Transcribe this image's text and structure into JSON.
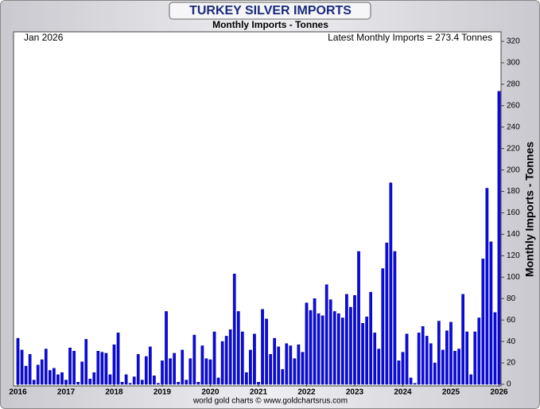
{
  "chart_data": {
    "type": "bar",
    "title": "TURKEY SILVER IMPORTS",
    "subtitle": "Monthly Imports - Tonnes",
    "y_axis_label": "Monthly Imports - Tonnes",
    "annotation_left": "Jan 2026",
    "annotation_right": "Latest Monthly Imports = 273.4 Tonnes",
    "footer": "world gold charts © www.goldchartsrus.com",
    "color": "#0a0ae6",
    "ylim": [
      0,
      320
    ],
    "yticks": [
      0,
      20,
      40,
      60,
      80,
      100,
      120,
      140,
      160,
      180,
      200,
      220,
      240,
      260,
      280,
      300,
      320
    ],
    "categories": [
      "2016",
      null,
      null,
      null,
      null,
      null,
      null,
      null,
      null,
      null,
      null,
      null,
      "2017",
      null,
      null,
      null,
      null,
      null,
      null,
      null,
      null,
      null,
      null,
      null,
      "2018",
      null,
      null,
      null,
      null,
      null,
      null,
      null,
      null,
      null,
      null,
      null,
      "2019",
      null,
      null,
      null,
      null,
      null,
      null,
      null,
      null,
      null,
      null,
      null,
      "2020",
      null,
      null,
      null,
      null,
      null,
      null,
      null,
      null,
      null,
      null,
      null,
      "2021",
      null,
      null,
      null,
      null,
      null,
      null,
      null,
      null,
      null,
      null,
      null,
      "2022",
      null,
      null,
      null,
      null,
      null,
      null,
      null,
      null,
      null,
      null,
      null,
      "2023",
      null,
      null,
      null,
      null,
      null,
      null,
      null,
      null,
      null,
      null,
      null,
      "2024",
      null,
      null,
      null,
      null,
      null,
      null,
      null,
      null,
      null,
      null,
      null,
      "2025",
      null,
      null,
      null,
      null,
      null,
      null,
      null,
      null,
      null,
      null,
      null,
      "2026"
    ],
    "values": [
      43,
      32,
      17,
      28,
      4,
      18,
      23,
      33,
      13,
      15,
      9,
      11,
      4,
      34,
      31,
      2,
      21,
      42,
      5,
      11,
      31,
      30,
      29,
      9,
      37,
      48,
      2,
      9,
      1,
      7,
      28,
      4,
      26,
      35,
      8,
      1,
      22,
      68,
      24,
      29,
      2,
      32,
      4,
      24,
      46,
      2,
      36,
      24,
      23,
      49,
      6,
      40,
      45,
      51,
      103,
      68,
      49,
      11,
      32,
      47,
      2,
      70,
      61,
      28,
      43,
      35,
      14,
      38,
      36,
      24,
      37,
      30,
      76,
      69,
      80,
      66,
      64,
      93,
      79,
      68,
      66,
      62,
      84,
      72,
      83,
      124,
      57,
      63,
      86,
      48,
      33,
      108,
      132,
      188,
      124,
      22,
      30,
      47,
      6,
      1,
      48,
      54,
      45,
      38,
      20,
      59,
      32,
      50,
      58,
      31,
      33,
      84,
      49,
      9,
      49,
      62,
      117,
      183,
      133,
      67,
      273.4
    ]
  }
}
